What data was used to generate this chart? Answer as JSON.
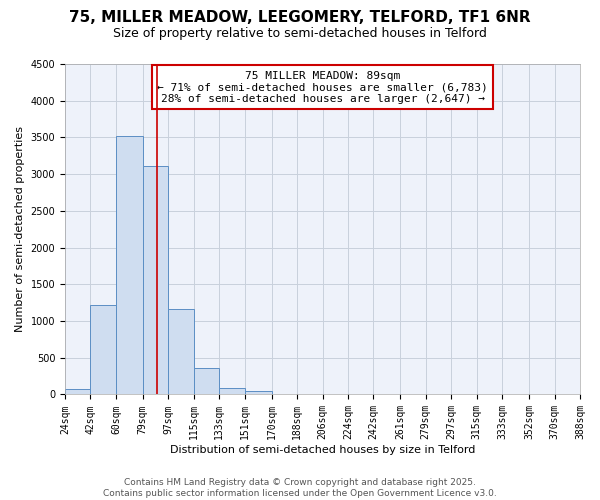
{
  "title_line1": "75, MILLER MEADOW, LEEGOMERY, TELFORD, TF1 6NR",
  "title_line2": "Size of property relative to semi-detached houses in Telford",
  "xlabel": "Distribution of semi-detached houses by size in Telford",
  "ylabel": "Number of semi-detached properties",
  "footer_line1": "Contains HM Land Registry data © Crown copyright and database right 2025.",
  "footer_line2": "Contains public sector information licensed under the Open Government Licence v3.0.",
  "annotation_title": "75 MILLER MEADOW: 89sqm",
  "annotation_line1": "← 71% of semi-detached houses are smaller (6,783)",
  "annotation_line2": "28% of semi-detached houses are larger (2,647) →",
  "property_size": 89,
  "bar_left_edges": [
    24,
    42,
    60,
    79,
    97,
    115,
    133,
    151,
    170,
    188,
    206,
    224,
    242,
    261,
    279,
    297,
    315,
    333,
    352,
    370
  ],
  "bar_widths": [
    18,
    18,
    19,
    18,
    18,
    18,
    18,
    19,
    18,
    18,
    18,
    18,
    19,
    18,
    18,
    18,
    18,
    19,
    18,
    18
  ],
  "bar_heights": [
    75,
    1213,
    3519,
    3107,
    1162,
    355,
    93,
    43,
    12,
    5,
    2,
    2,
    0,
    1,
    0,
    0,
    0,
    0,
    0,
    0
  ],
  "tick_labels": [
    "24sqm",
    "42sqm",
    "60sqm",
    "79sqm",
    "97sqm",
    "115sqm",
    "133sqm",
    "151sqm",
    "170sqm",
    "188sqm",
    "206sqm",
    "224sqm",
    "242sqm",
    "261sqm",
    "279sqm",
    "297sqm",
    "315sqm",
    "333sqm",
    "352sqm",
    "370sqm",
    "388sqm"
  ],
  "tick_positions": [
    24,
    42,
    60,
    79,
    97,
    115,
    133,
    151,
    170,
    188,
    206,
    224,
    242,
    261,
    279,
    297,
    315,
    333,
    352,
    370,
    388
  ],
  "ylim": [
    0,
    4500
  ],
  "xlim_left": 24,
  "xlim_right": 388,
  "bar_color": "#cfddf0",
  "bar_edge_color": "#5b8ec4",
  "plot_bg_color": "#eef2fa",
  "fig_bg_color": "#ffffff",
  "grid_color": "#c8d0dc",
  "marker_line_color": "#cc0000",
  "annotation_box_edge": "#cc0000",
  "title1_fontsize": 11,
  "title2_fontsize": 9,
  "xlabel_fontsize": 8,
  "ylabel_fontsize": 8,
  "tick_fontsize": 7,
  "footer_fontsize": 6.5,
  "annotation_fontsize": 8
}
